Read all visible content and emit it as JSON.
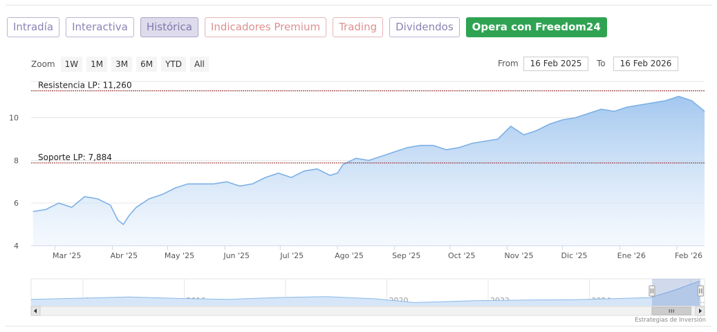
{
  "tabs": [
    {
      "label": "Intradía",
      "style": "normal"
    },
    {
      "label": "Interactiva",
      "style": "normal"
    },
    {
      "label": "Histórica",
      "style": "active"
    },
    {
      "label": "Indicadores Premium",
      "style": "premium"
    },
    {
      "label": "Trading",
      "style": "trading"
    },
    {
      "label": "Dividendos",
      "style": "normal"
    },
    {
      "label": "Opera con Freedom24",
      "style": "green"
    }
  ],
  "zoom": {
    "label": "Zoom",
    "buttons": [
      "1W",
      "1M",
      "3M",
      "6M",
      "YTD",
      "All"
    ]
  },
  "range": {
    "from_label": "From",
    "from_value": "16 Feb 2025",
    "to_label": "To",
    "to_value": "16 Feb 2026"
  },
  "credit": "Estrategias de Inversión",
  "colors": {
    "line": "#7cb0e6",
    "area_top": "#9ec4ee",
    "area_bottom": "#eef5fd",
    "level_line": "#8b1c1c"
  },
  "chart_data": {
    "type": "area",
    "x": [
      "2025-02-17",
      "2025-02-24",
      "2025-03-03",
      "2025-03-10",
      "2025-03-17",
      "2025-03-24",
      "2025-03-31",
      "2025-04-04",
      "2025-04-07",
      "2025-04-10",
      "2025-04-14",
      "2025-04-21",
      "2025-04-28",
      "2025-05-05",
      "2025-05-12",
      "2025-05-19",
      "2025-05-26",
      "2025-06-02",
      "2025-06-09",
      "2025-06-16",
      "2025-06-23",
      "2025-06-30",
      "2025-07-07",
      "2025-07-14",
      "2025-07-21",
      "2025-07-28",
      "2025-08-01",
      "2025-08-04",
      "2025-08-11",
      "2025-08-18",
      "2025-08-25",
      "2025-09-01",
      "2025-09-08",
      "2025-09-15",
      "2025-09-22",
      "2025-09-29",
      "2025-10-06",
      "2025-10-13",
      "2025-10-20",
      "2025-10-27",
      "2025-11-03",
      "2025-11-10",
      "2025-11-17",
      "2025-11-24",
      "2025-12-01",
      "2025-12-08",
      "2025-12-15",
      "2025-12-22",
      "2025-12-29",
      "2026-01-05",
      "2026-01-12",
      "2026-01-19",
      "2026-01-26",
      "2026-02-02",
      "2026-02-09",
      "2026-02-16"
    ],
    "values": [
      5.6,
      5.7,
      6.0,
      5.8,
      6.3,
      6.2,
      5.9,
      5.2,
      5.0,
      5.4,
      5.8,
      6.2,
      6.4,
      6.7,
      6.9,
      6.9,
      6.9,
      7.0,
      6.8,
      6.9,
      7.2,
      7.4,
      7.2,
      7.5,
      7.6,
      7.3,
      7.4,
      7.8,
      8.1,
      8.0,
      8.2,
      8.4,
      8.6,
      8.7,
      8.7,
      8.5,
      8.6,
      8.8,
      8.9,
      9.0,
      9.6,
      9.2,
      9.4,
      9.7,
      9.9,
      10.0,
      10.2,
      10.4,
      10.3,
      10.5,
      10.6,
      10.7,
      10.8,
      11.0,
      10.8,
      10.3
    ],
    "yticks": [
      4,
      6,
      8,
      10
    ],
    "ylim": [
      4,
      11.7
    ],
    "xlim": [
      "2025-02-16",
      "2026-02-16"
    ],
    "xticks": [
      {
        "date": "2025-03-01",
        "label": "Mar '25"
      },
      {
        "date": "2025-04-01",
        "label": "Abr '25"
      },
      {
        "date": "2025-05-01",
        "label": "May '25"
      },
      {
        "date": "2025-06-01",
        "label": "Jun '25"
      },
      {
        "date": "2025-07-01",
        "label": "Jul '25"
      },
      {
        "date": "2025-08-01",
        "label": "Ago '25"
      },
      {
        "date": "2025-09-01",
        "label": "Sep '25"
      },
      {
        "date": "2025-10-01",
        "label": "Oct '25"
      },
      {
        "date": "2025-11-01",
        "label": "Nov '25"
      },
      {
        "date": "2025-12-01",
        "label": "Dic '25"
      },
      {
        "date": "2026-01-01",
        "label": "Ene '26"
      },
      {
        "date": "2026-02-01",
        "label": "Feb '26"
      }
    ],
    "levels": [
      {
        "label": "Resistencia LP: 11,260",
        "value": 11.26
      },
      {
        "label": "Soporte LP: 7,884",
        "value": 7.884
      }
    ],
    "navigator": {
      "years": [
        "2014",
        "2016",
        "2018",
        "2020",
        "2022",
        "2024",
        "2..."
      ],
      "x": [
        2012.5,
        2013.5,
        2014.5,
        2015.5,
        2016.5,
        2017.5,
        2018.5,
        2019.5,
        2020.3,
        2021.5,
        2022.5,
        2023.5,
        2024.5,
        2025.1,
        2025.6,
        2026.1
      ],
      "values": [
        5.0,
        5.4,
        5.8,
        5.3,
        5.0,
        5.6,
        5.9,
        5.2,
        4.0,
        4.6,
        4.8,
        4.9,
        5.3,
        5.6,
        8.0,
        10.8
      ],
      "selected": [
        "2025-02-16",
        "2026-02-16"
      ]
    }
  }
}
